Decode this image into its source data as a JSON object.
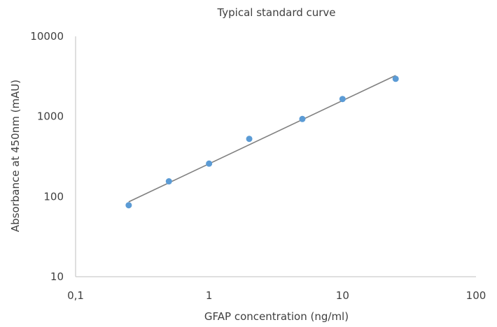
{
  "chart_data": {
    "type": "scatter",
    "title": "Typical standard curve",
    "xlabel": "GFAP concentration (ng/ml)",
    "ylabel": "Absorbance at 450nm (mAU)",
    "x_scale": "log",
    "y_scale": "log",
    "xlim": [
      0.1,
      100
    ],
    "ylim": [
      10,
      10000
    ],
    "x_ticks": [
      0.1,
      1,
      10,
      100
    ],
    "x_tick_labels": [
      "0,1",
      "1",
      "10",
      "100"
    ],
    "y_ticks": [
      10,
      100,
      1000,
      10000
    ],
    "y_tick_labels": [
      "10",
      "100",
      "1000",
      "10000"
    ],
    "grid": false,
    "series": [
      {
        "type": "scatter",
        "color": "#5b9bd5",
        "x": [
          0.25,
          0.5,
          1,
          2,
          5,
          10,
          25
        ],
        "y": [
          78,
          155,
          258,
          525,
          930,
          1650,
          2950
        ]
      },
      {
        "type": "trendline",
        "color": "#808080",
        "x": [
          0.25,
          25
        ],
        "y": [
          86,
          3250
        ]
      }
    ]
  }
}
